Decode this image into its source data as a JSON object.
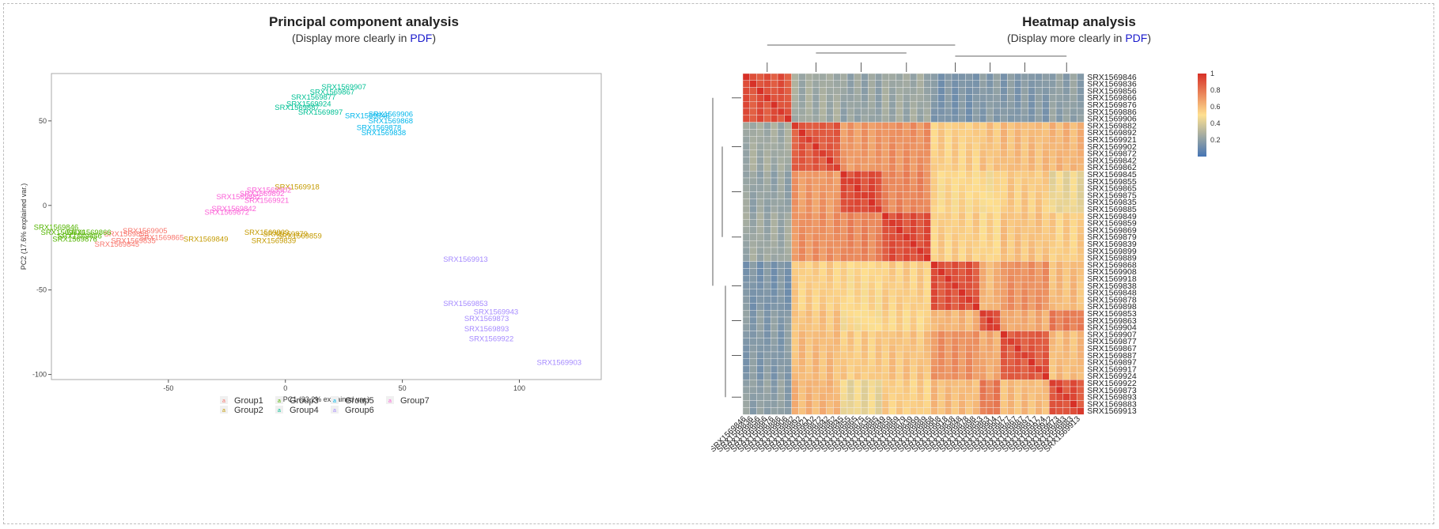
{
  "pca": {
    "title": "Principal component analysis",
    "subtitle_prefix": "(Display more clearly in ",
    "subtitle_link": "PDF",
    "subtitle_suffix": ")"
  },
  "heatmap": {
    "title": "Heatmap analysis",
    "subtitle_prefix": "(Display more clearly in ",
    "subtitle_link": "PDF",
    "subtitle_suffix": ")"
  },
  "chart_data": [
    {
      "type": "scatter",
      "title": "Principal component analysis",
      "xlabel": "PC1 (33.2% explained var.)",
      "ylabel": "PC2 (17.6% explained var.)",
      "xlim": [
        -100,
        135
      ],
      "ylim": [
        -103,
        78
      ],
      "xticks": [
        -50,
        0,
        50,
        100
      ],
      "yticks": [
        50,
        0,
        -50,
        -100
      ],
      "grid": false,
      "legend_position": "bottom",
      "series": [
        {
          "name": "Group1",
          "color": "#f8766d",
          "points": [
            {
              "label": "SRX1569865",
              "x": -53,
              "y": -19
            },
            {
              "label": "SRX1569905",
              "x": -60,
              "y": -15
            },
            {
              "label": "SRX1569835",
              "x": -65,
              "y": -21
            },
            {
              "label": "SRX1569845",
              "x": -72,
              "y": -23
            },
            {
              "label": "SRX1569855",
              "x": -68,
              "y": -17
            }
          ]
        },
        {
          "name": "Group2",
          "color": "#c49a00",
          "points": [
            {
              "label": "SRX1569918",
              "x": 5,
              "y": 11
            },
            {
              "label": "SRX1569849",
              "x": -34,
              "y": -20
            },
            {
              "label": "SRX1569839",
              "x": -5,
              "y": -21
            },
            {
              "label": "SRX1569859",
              "x": 6,
              "y": -18
            },
            {
              "label": "SRX1569869",
              "x": -8,
              "y": -16
            },
            {
              "label": "SRX1569879",
              "x": 0,
              "y": -17
            }
          ]
        },
        {
          "name": "Group3",
          "color": "#53b400",
          "points": [
            {
              "label": "SRX1569846",
              "x": -98,
              "y": -13
            },
            {
              "label": "SRX1569836",
              "x": -95,
              "y": -16
            },
            {
              "label": "SRX1569856",
              "x": -88,
              "y": -18
            },
            {
              "label": "SRX1569866",
              "x": -84,
              "y": -16
            },
            {
              "label": "SRX1569876",
              "x": -90,
              "y": -20
            }
          ]
        },
        {
          "name": "Group4",
          "color": "#00c094",
          "points": [
            {
              "label": "SRX1569907",
              "x": 25,
              "y": 70
            },
            {
              "label": "SRX1569867",
              "x": 20,
              "y": 67
            },
            {
              "label": "SRX1569877",
              "x": 12,
              "y": 64
            },
            {
              "label": "SRX1569924",
              "x": 10,
              "y": 60
            },
            {
              "label": "SRX1569887",
              "x": 5,
              "y": 58
            },
            {
              "label": "SRX1569897",
              "x": 15,
              "y": 55
            }
          ]
        },
        {
          "name": "Group5",
          "color": "#00b6eb",
          "points": [
            {
              "label": "SRX1569906",
              "x": 45,
              "y": 54
            },
            {
              "label": "SRX1569868",
              "x": 45,
              "y": 50
            },
            {
              "label": "SRX1569878",
              "x": 40,
              "y": 46
            },
            {
              "label": "SRX1569838",
              "x": 42,
              "y": 43
            },
            {
              "label": "SRX1569848",
              "x": 35,
              "y": 53
            }
          ]
        },
        {
          "name": "Group6",
          "color": "#a58aff",
          "points": [
            {
              "label": "SRX1569913",
              "x": 77,
              "y": -32
            },
            {
              "label": "SRX1569853",
              "x": 77,
              "y": -58
            },
            {
              "label": "SRX1569943",
              "x": 90,
              "y": -63
            },
            {
              "label": "SRX1569873",
              "x": 86,
              "y": -67
            },
            {
              "label": "SRX1569893",
              "x": 86,
              "y": -73
            },
            {
              "label": "SRX1569922",
              "x": 88,
              "y": -79
            },
            {
              "label": "SRX1569903",
              "x": 117,
              "y": -93
            }
          ]
        },
        {
          "name": "Group7",
          "color": "#fb61d7",
          "points": [
            {
              "label": "SRX1569902",
              "x": -7,
              "y": 9
            },
            {
              "label": "SRX1569892",
              "x": -10,
              "y": 7
            },
            {
              "label": "SRX1569882",
              "x": -20,
              "y": 5
            },
            {
              "label": "SRX1569921",
              "x": -8,
              "y": 3
            },
            {
              "label": "SRX1569842",
              "x": -22,
              "y": -2
            },
            {
              "label": "SRX1569872",
              "x": -25,
              "y": -4
            }
          ]
        }
      ]
    },
    {
      "type": "heatmap",
      "title": "Heatmap analysis",
      "legend_position": "right",
      "legend_ticks": [
        1,
        0.8,
        0.6,
        0.4,
        0.2
      ],
      "color_scale": [
        "#4575b4",
        "#fee090",
        "#d73027"
      ],
      "row_labels": [
        "SRX1569846",
        "SRX1569836",
        "SRX1569856",
        "SRX1569866",
        "SRX1569876",
        "SRX1569886",
        "SRX1569906",
        "SRX1569882",
        "SRX1569892",
        "SRX1569921",
        "SRX1569902",
        "SRX1569872",
        "SRX1569842",
        "SRX1569862",
        "SRX1569845",
        "SRX1569855",
        "SRX1569865",
        "SRX1569875",
        "SRX1569835",
        "SRX1569885",
        "SRX1569849",
        "SRX1569859",
        "SRX1569869",
        "SRX1569879",
        "SRX1569839",
        "SRX1569899",
        "SRX1569889",
        "SRX1569868",
        "SRX1569908",
        "SRX1569918",
        "SRX1569838",
        "SRX1569848",
        "SRX1569878",
        "SRX1569898",
        "SRX1569853",
        "SRX1569863",
        "SRX1569904",
        "SRX1569907",
        "SRX1569877",
        "SRX1569867",
        "SRX1569887",
        "SRX1569897",
        "SRX1569917",
        "SRX1569924",
        "SRX1569922",
        "SRX1569873",
        "SRX1569893",
        "SRX1569883",
        "SRX1569913"
      ],
      "groups": [
        {
          "start": 0,
          "end": 7
        },
        {
          "start": 7,
          "end": 14
        },
        {
          "start": 14,
          "end": 20
        },
        {
          "start": 20,
          "end": 27
        },
        {
          "start": 27,
          "end": 34
        },
        {
          "start": 34,
          "end": 37
        },
        {
          "start": 37,
          "end": 44
        },
        {
          "start": 44,
          "end": 49
        }
      ],
      "block_values": [
        [
          0.9,
          0.25,
          0.22,
          0.24,
          0.15,
          0.18,
          0.17,
          0.2
        ],
        [
          0.25,
          0.88,
          0.7,
          0.72,
          0.55,
          0.58,
          0.6,
          0.62
        ],
        [
          0.22,
          0.7,
          0.92,
          0.75,
          0.52,
          0.5,
          0.56,
          0.45
        ],
        [
          0.24,
          0.72,
          0.75,
          0.91,
          0.55,
          0.53,
          0.58,
          0.55
        ],
        [
          0.15,
          0.55,
          0.52,
          0.55,
          0.9,
          0.62,
          0.72,
          0.6
        ],
        [
          0.18,
          0.58,
          0.5,
          0.53,
          0.62,
          0.92,
          0.65,
          0.78
        ],
        [
          0.17,
          0.6,
          0.56,
          0.58,
          0.72,
          0.65,
          0.88,
          0.6
        ],
        [
          0.2,
          0.62,
          0.45,
          0.55,
          0.6,
          0.78,
          0.6,
          0.9
        ]
      ]
    }
  ]
}
